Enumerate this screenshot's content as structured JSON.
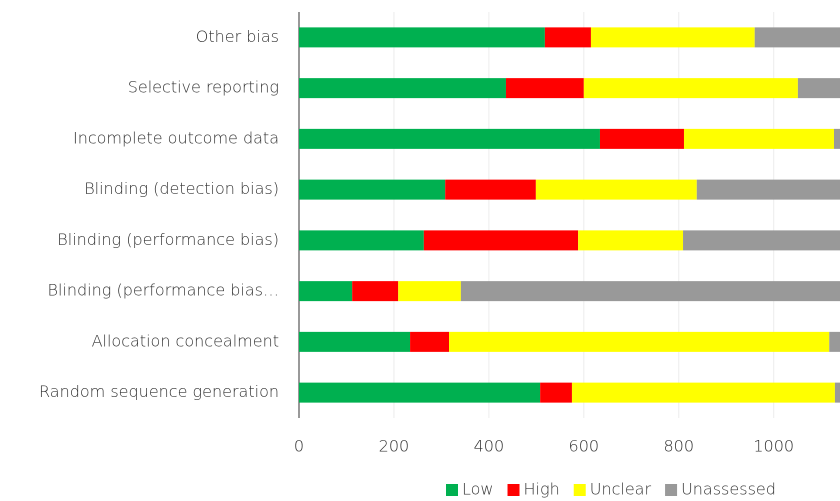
{
  "chart_data": {
    "type": "stacked_bar_horizontal",
    "categories": [
      "Other bias",
      "Selective reporting",
      "Incomplete outcome data",
      "Blinding (detection bias)",
      "Blinding (performance bias)",
      "Blinding (performance bias…",
      "Allocation concealment",
      "Random sequence generation"
    ],
    "series": [
      {
        "name": "Low",
        "color": "#00b050",
        "values": [
          518,
          436,
          634,
          308,
          263,
          112,
          234,
          508
        ]
      },
      {
        "name": "High",
        "color": "#ff0000",
        "values": [
          97,
          164,
          177,
          191,
          325,
          97,
          82,
          67
        ]
      },
      {
        "name": "Unclear",
        "color": "#ffff00",
        "values": [
          345,
          451,
          316,
          339,
          221,
          132,
          801,
          554
        ]
      },
      {
        "name": "Unassessed",
        "color": "#999999",
        "values": [
          200,
          109,
          33,
          322,
          351,
          819,
          43,
          31
        ]
      }
    ],
    "xlim": [
      0,
      1200
    ],
    "xticks": [
      0,
      200,
      400,
      600,
      800,
      1000
    ],
    "grid": true,
    "legend": "bottom"
  }
}
